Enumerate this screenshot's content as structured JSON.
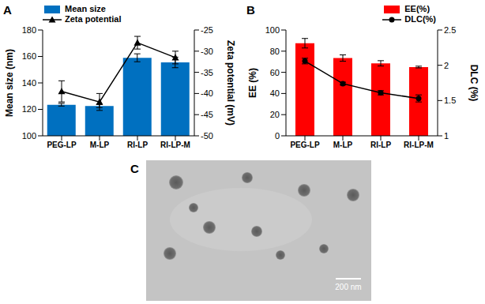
{
  "chart_data": [
    {
      "panel": "A",
      "type": "bar",
      "categories": [
        "PEG-LP",
        "M-LP",
        "RI-LP",
        "RI-LP-M"
      ],
      "y_label": "Mean size (nm)",
      "y2_label": "Zeta potential (mV)",
      "ylim": [
        100,
        180
      ],
      "yticks": [
        100,
        120,
        140,
        160,
        180
      ],
      "y2lim": [
        -50,
        -25
      ],
      "y2ticks": [
        -50,
        -45,
        -40,
        -35,
        -30,
        -25
      ],
      "legend": "top-left",
      "series": [
        {
          "name": "Mean size",
          "type": "bar",
          "color": "#0070c0",
          "values": [
            123.5,
            122.5,
            159,
            155.5
          ],
          "errors": [
            1,
            1.2,
            3,
            4
          ]
        },
        {
          "name": "Zeta potential",
          "type": "line",
          "axis": "y2",
          "color": "#000000",
          "marker": "triangle",
          "values": [
            -39.5,
            -42,
            -28,
            -31.5
          ],
          "errors": [
            2.5,
            2,
            1.5,
            1.5
          ]
        }
      ]
    },
    {
      "panel": "B",
      "type": "bar",
      "categories": [
        "PEG-LP",
        "M-LP",
        "RI-LP",
        "RI-LP-M"
      ],
      "y_label": "EE (%)",
      "y2_label": "DLC (%)",
      "ylim": [
        0,
        100
      ],
      "yticks": [
        0,
        20,
        40,
        60,
        80,
        100
      ],
      "y2lim": [
        1,
        2.5
      ],
      "y2ticks": [
        1,
        1.5,
        2,
        2.5
      ],
      "legend": "top-right",
      "series": [
        {
          "name": "EE(%)",
          "type": "bar",
          "color": "#ff0000",
          "values": [
            87.5,
            73.5,
            68.5,
            65
          ],
          "errors": [
            4.5,
            3,
            2.5,
            0.8
          ]
        },
        {
          "name": "DLC(%)",
          "type": "line",
          "axis": "y2",
          "color": "#000000",
          "marker": "circle",
          "values": [
            2.06,
            1.74,
            1.61,
            1.53
          ],
          "errors": [
            0.04,
            0.02,
            0.03,
            0.05
          ]
        }
      ]
    }
  ],
  "image": {
    "panel": "C",
    "scale_bar": "200 nm"
  }
}
